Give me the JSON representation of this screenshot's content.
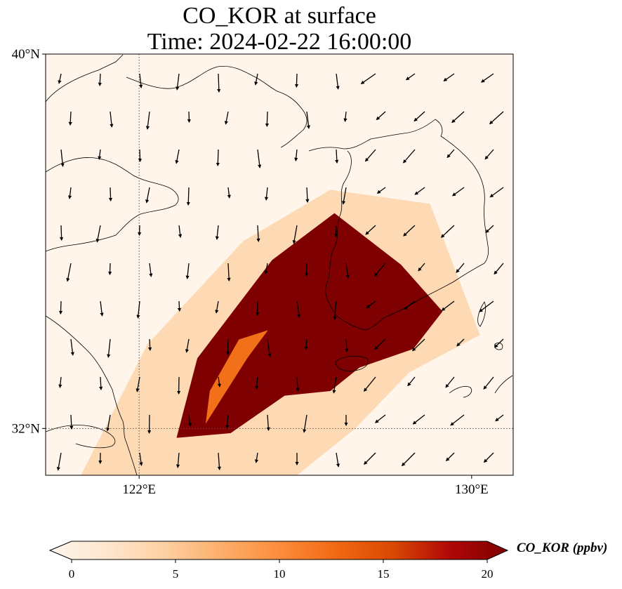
{
  "title": {
    "line1": "CO_KOR at surface",
    "line2": "Time: 2024-02-22 16:00:00"
  },
  "map": {
    "extent": {
      "lon_min": 119.75,
      "lon_max": 131.0,
      "lat_min": 31.0,
      "lat_max": 40.0
    },
    "lat_ticks": [
      {
        "value": 40,
        "label": "40°N"
      },
      {
        "value": 32,
        "label": "32°N"
      }
    ],
    "lon_ticks": [
      {
        "value": 122,
        "label": "122°E"
      },
      {
        "value": 130,
        "label": "130°E"
      }
    ],
    "gridlines": {
      "lon": [
        122
      ],
      "lat": [
        32
      ],
      "style": "dotted"
    },
    "background_color": "#fff5eb",
    "coastline_color": "#000000",
    "plume": {
      "palette": [
        "#fff5eb",
        "#fdd9b4",
        "#fda762",
        "#f3701b",
        "#d94801",
        "#b11a0b",
        "#7f0000"
      ],
      "outer_band": [
        [
          120.6,
          31.0
        ],
        [
          122.2,
          33.8
        ],
        [
          124.5,
          36.0
        ],
        [
          126.6,
          37.1
        ],
        [
          129.0,
          36.8
        ],
        [
          130.2,
          34.0
        ],
        [
          128.5,
          33.2
        ],
        [
          127.2,
          32.0
        ],
        [
          125.8,
          31.0
        ]
      ],
      "core": [
        [
          122.9,
          31.8
        ],
        [
          123.4,
          33.5
        ],
        [
          125.2,
          35.6
        ],
        [
          126.7,
          36.6
        ],
        [
          128.3,
          35.5
        ],
        [
          129.3,
          34.5
        ],
        [
          128.6,
          33.7
        ],
        [
          127.3,
          33.3
        ],
        [
          126.6,
          32.8
        ],
        [
          125.5,
          32.7
        ],
        [
          124.2,
          31.9
        ]
      ],
      "inner_channel": [
        [
          123.6,
          32.1
        ],
        [
          124.6,
          33.5
        ],
        [
          125.1,
          34.1
        ],
        [
          124.4,
          33.9
        ],
        [
          123.7,
          32.8
        ]
      ]
    }
  },
  "colorbar": {
    "title": "CO_KOR (ppbv)",
    "ticks": [
      0,
      5,
      10,
      15,
      20
    ],
    "vmin": 0,
    "vmax": 20,
    "extend": "both",
    "colors": [
      "#fff5eb",
      "#fee6ce",
      "#fdd0a2",
      "#fdae6b",
      "#fd8d3c",
      "#f16913",
      "#d94801",
      "#b00707",
      "#7f0000"
    ]
  }
}
